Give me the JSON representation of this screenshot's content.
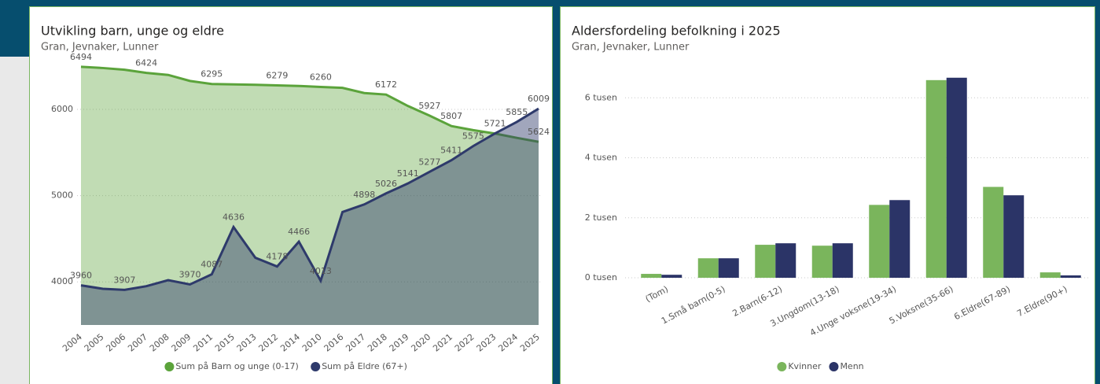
{
  "chart_data": [
    {
      "type": "area",
      "title": "Utvikling barn, unge og eldre",
      "subtitle": "Gran, Jevnaker, Lunner",
      "categories": [
        "2004",
        "2005",
        "2006",
        "2007",
        "2008",
        "2009",
        "2011",
        "2015",
        "2013",
        "2012",
        "2014",
        "2010",
        "2016",
        "2017",
        "2018",
        "2019",
        "2020",
        "2021",
        "2022",
        "2023",
        "2024",
        "2025"
      ],
      "series": [
        {
          "name": "Sum på Barn og unge (0-17)",
          "color": "#5ba33b",
          "values": [
            6494,
            6480,
            6460,
            6424,
            6400,
            6330,
            6295,
            6290,
            6285,
            6279,
            6272,
            6260,
            6250,
            6190,
            6172,
            6040,
            5927,
            5807,
            5760,
            5720,
            5670,
            5624
          ],
          "value_labels": [
            "6494",
            null,
            null,
            "6424",
            null,
            null,
            "6295",
            null,
            null,
            "6279",
            null,
            "6260",
            null,
            null,
            "6172",
            null,
            "5927",
            "5807",
            null,
            null,
            null,
            "5624"
          ]
        },
        {
          "name": "Sum på Eldre (67+)",
          "color": "#2e3a6b",
          "values": [
            3960,
            3920,
            3907,
            3950,
            4020,
            3970,
            4087,
            4636,
            4280,
            4178,
            4466,
            4013,
            4810,
            4898,
            5026,
            5141,
            5277,
            5411,
            5575,
            5721,
            5855,
            6009
          ],
          "value_labels": [
            "3960",
            null,
            "3907",
            null,
            null,
            "3970",
            "4087",
            "4636",
            null,
            "4178",
            "4466",
            "4013",
            null,
            "4898",
            "5026",
            "5141",
            "5277",
            "5411",
            "5575",
            "5721",
            "5855",
            "6009"
          ]
        }
      ],
      "ylim": [
        3500,
        6630
      ],
      "yticks": [
        4000,
        5000,
        6000
      ],
      "grid": true,
      "legend": "bottom"
    },
    {
      "type": "bar",
      "title": "Aldersfordeling befolkning i 2025",
      "subtitle": "Gran, Jevnaker, Lunner",
      "categories": [
        "(Tom)",
        "1.Små barn(0-5)",
        "2.Barn(6-12)",
        "3.Ungdom(13-18)",
        "4.Unge voksne(19-34)",
        "5.Voksne(35-66)",
        "6.Eldre(67-89)",
        "7.Eldre(90+)"
      ],
      "series": [
        {
          "name": "Kvinner",
          "color": "#7ab55c",
          "values": [
            130,
            650,
            1100,
            1070,
            2430,
            6590,
            3030,
            180
          ]
        },
        {
          "name": "Menn",
          "color": "#2b3467",
          "values": [
            100,
            650,
            1150,
            1150,
            2590,
            6670,
            2750,
            80
          ]
        }
      ],
      "ylim": [
        0,
        6900
      ],
      "yticks": [
        {
          "value": 0,
          "label": "0 tusen"
        },
        {
          "value": 2000,
          "label": "2 tusen"
        },
        {
          "value": 4000,
          "label": "4 tusen"
        },
        {
          "value": 6000,
          "label": "6 tusen"
        }
      ],
      "grid": true,
      "legend": "bottom"
    }
  ]
}
